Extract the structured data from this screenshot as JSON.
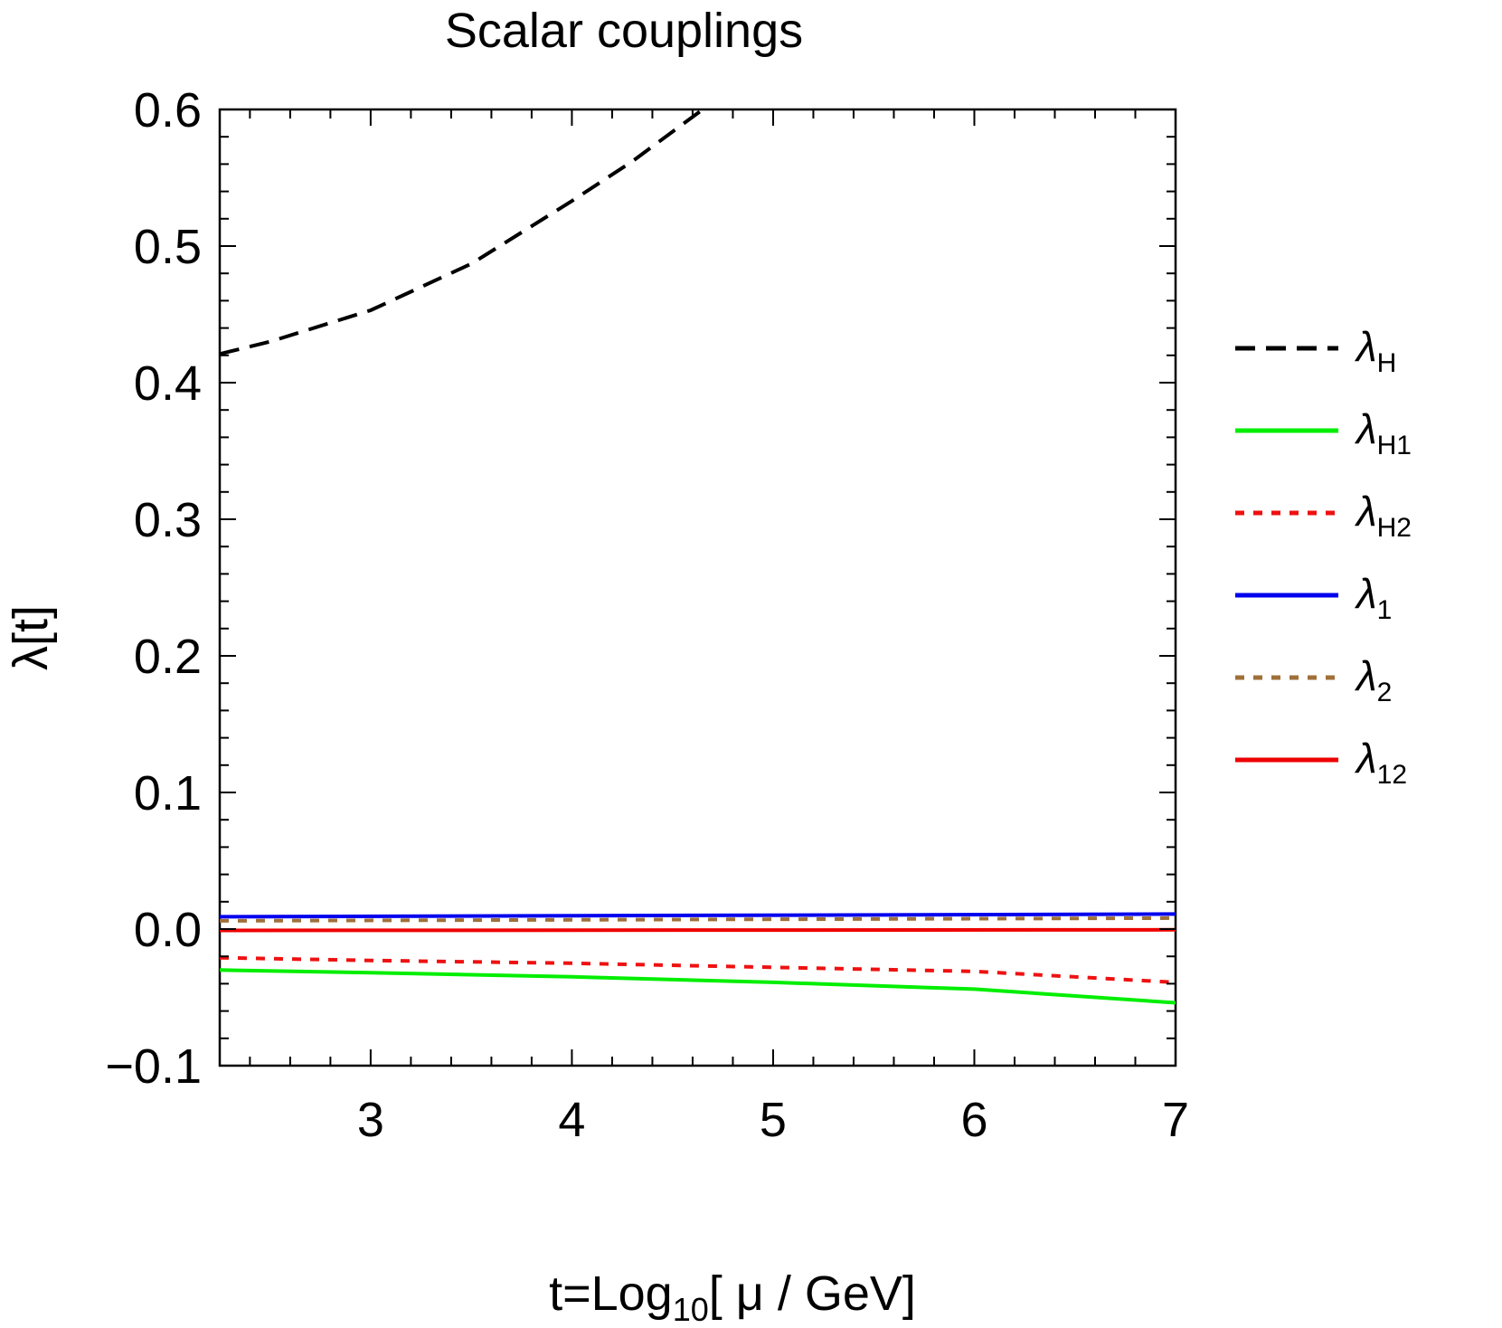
{
  "chart_data": {
    "type": "line",
    "title": "Scalar couplings",
    "xlabel": {
      "prefix": "t=Log",
      "sub": "10",
      "suffix": "[ μ / GeV]"
    },
    "ylabel": "λ[t]",
    "xlim": [
      2.25,
      7.0
    ],
    "ylim": [
      -0.1,
      0.6
    ],
    "xticks": [
      3,
      4,
      5,
      6,
      7
    ],
    "xtick_labels": [
      "3",
      "4",
      "5",
      "6",
      "7"
    ],
    "yticks": [
      -0.1,
      0.0,
      0.1,
      0.2,
      0.3,
      0.4,
      0.5,
      0.6
    ],
    "ytick_labels": [
      "−0.1",
      "0.0",
      "0.1",
      "0.2",
      "0.3",
      "0.4",
      "0.5",
      "0.6"
    ],
    "legend_position": "right",
    "grid": false,
    "series": [
      {
        "name": "λ",
        "sub": "H",
        "sub_italic": true,
        "color": "#000000",
        "style": "dashed",
        "x": [
          2.25,
          2.5,
          3.0,
          3.5,
          4.0,
          4.3,
          4.65
        ],
        "y": [
          0.421,
          0.43,
          0.453,
          0.487,
          0.533,
          0.562,
          0.6
        ]
      },
      {
        "name": "λ",
        "sub": "H1",
        "color": "#00ee00",
        "style": "solid",
        "x": [
          2.25,
          3.0,
          4.0,
          5.0,
          6.0,
          7.0
        ],
        "y": [
          -0.03,
          -0.032,
          -0.035,
          -0.039,
          -0.044,
          -0.054
        ]
      },
      {
        "name": "λ",
        "sub": "H2",
        "color": "#ee1111",
        "style": "dotted",
        "x": [
          2.25,
          3.0,
          4.0,
          5.0,
          6.0,
          7.0
        ],
        "y": [
          -0.021,
          -0.023,
          -0.025,
          -0.028,
          -0.031,
          -0.039
        ]
      },
      {
        "name": "λ",
        "sub": "1",
        "color": "#0000ee",
        "style": "solid",
        "x": [
          2.25,
          7.0
        ],
        "y": [
          0.009,
          0.011
        ]
      },
      {
        "name": "λ",
        "sub": "2",
        "color": "#a0703a",
        "style": "dotted",
        "x": [
          2.25,
          7.0
        ],
        "y": [
          0.006,
          0.008
        ]
      },
      {
        "name": "λ",
        "sub": "12",
        "color": "#ee0000",
        "style": "solid",
        "x": [
          2.25,
          7.0
        ],
        "y": [
          -0.001,
          -0.0005
        ]
      }
    ]
  }
}
